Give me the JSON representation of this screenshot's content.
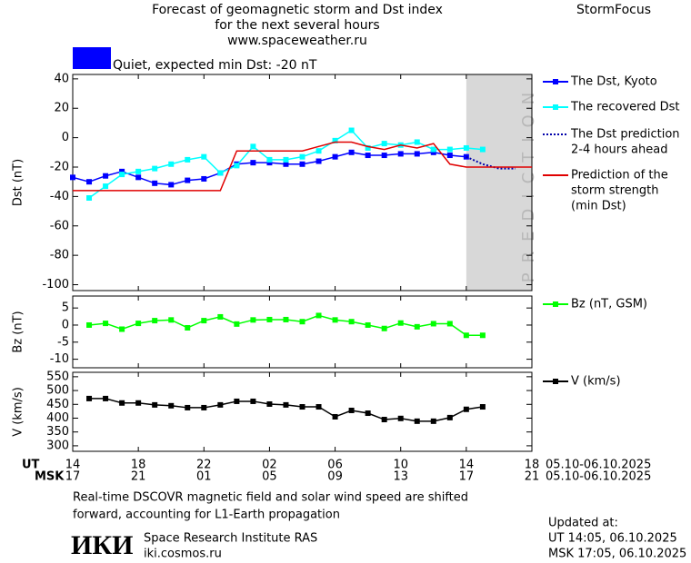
{
  "page": {
    "title": [
      "Forecast of geomagnetic storm and Dst index",
      "for the next several hours",
      "www.spaceweather.ru"
    ],
    "brand": "StormFocus",
    "quiet": {
      "label": "Quiet, expected min Dst: -20 nT",
      "color": "#0000ff"
    },
    "ut_label": "UT",
    "msk_label": "MSK",
    "date_range_ut": "05.10-06.10.2025",
    "date_range_msk": "05.10-06.10.2025",
    "note": [
      "Real-time DSCOVR magnetic field and solar wind speed are shifted",
      "forward, accounting for L1-Earth propagation"
    ],
    "logo": "ИКИ",
    "institute": "Space Research Institute RAS",
    "site": "iki.cosmos.ru",
    "updated": [
      "Updated at:",
      "UT   14:05, 06.10.2025",
      "MSK 17:05, 06.10.2025"
    ]
  },
  "chart_data": [
    {
      "type": "line",
      "ylabel": "Dst (nT)",
      "xlim": [
        0,
        28
      ],
      "ylim": [
        -104,
        43
      ],
      "yticks": [
        40,
        20,
        0,
        -20,
        -40,
        -60,
        -80,
        -100
      ],
      "prediction": {
        "label": "PREDICTION",
        "xlim": [
          24,
          28
        ],
        "color": "#d8d8d8"
      },
      "series": [
        {
          "name": [
            "The Dst, Kyoto"
          ],
          "color": "#0000ff",
          "marker": true,
          "style": "solid",
          "x": [
            0,
            1,
            2,
            3,
            4,
            5,
            6,
            7,
            8,
            9,
            10,
            11,
            12,
            13,
            14,
            15,
            16,
            17,
            18,
            19,
            20,
            21,
            22,
            23,
            24
          ],
          "values": [
            -27,
            -30,
            -26,
            -23,
            -27,
            -31,
            -32,
            -29,
            -28,
            -24,
            -18,
            -17,
            -17,
            -18,
            -18,
            -16,
            -13,
            -10,
            -12,
            -12,
            -11,
            -11,
            -10,
            -12,
            -13
          ]
        },
        {
          "name": [
            "The recovered Dst"
          ],
          "color": "#00ffff",
          "marker": true,
          "style": "solid",
          "x": [
            1,
            2,
            3,
            4,
            5,
            6,
            7,
            8,
            9,
            10,
            11,
            12,
            13,
            14,
            15,
            16,
            17,
            18,
            19,
            20,
            21,
            22,
            23,
            24,
            25
          ],
          "values": [
            -41,
            -33,
            -25,
            -23,
            -21,
            -18,
            -15,
            -13,
            -24,
            -19,
            -6,
            -15,
            -15,
            -13,
            -9,
            -2,
            5,
            -7,
            -4,
            -5,
            -3,
            -8,
            -8,
            -7,
            -8
          ]
        },
        {
          "name": [
            "The Dst prediction",
            "2-4 hours ahead"
          ],
          "color": "#0000aa",
          "marker": false,
          "style": "dotted",
          "x": [
            24,
            25,
            26,
            27
          ],
          "values": [
            -13,
            -18,
            -21,
            -21
          ]
        },
        {
          "name": [
            "Prediction of the",
            "storm strength",
            "(min Dst)"
          ],
          "color": "#e00000",
          "marker": false,
          "style": "solid",
          "x": [
            0,
            9,
            10,
            14,
            15,
            16,
            17,
            18,
            19,
            20,
            21,
            22,
            23,
            24,
            28
          ],
          "values": [
            -36,
            -36,
            -9,
            -9,
            -6,
            -3,
            -3,
            -6,
            -8,
            -5,
            -7,
            -4,
            -18,
            -20,
            -20
          ]
        }
      ]
    },
    {
      "type": "line",
      "ylabel": "Bz (nT)",
      "xlim": [
        0,
        28
      ],
      "ylim": [
        -12.5,
        8.5
      ],
      "yticks": [
        5,
        0,
        -5,
        -10
      ],
      "series": [
        {
          "name": [
            "Bz (nT, GSM)"
          ],
          "color": "#00ff00",
          "marker": true,
          "style": "solid",
          "x": [
            1,
            2,
            3,
            4,
            5,
            6,
            7,
            8,
            9,
            10,
            11,
            12,
            13,
            14,
            15,
            16,
            17,
            18,
            19,
            20,
            21,
            22,
            23,
            24,
            25
          ],
          "values": [
            0,
            0.5,
            -1.2,
            0.5,
            1.3,
            1.5,
            -0.8,
            1.3,
            2.4,
            0.3,
            1.5,
            1.6,
            1.6,
            1.0,
            2.8,
            1.5,
            1.0,
            0,
            -1.0,
            0.6,
            -0.5,
            0.4,
            0.4,
            -3.0,
            -3.0
          ]
        }
      ]
    },
    {
      "type": "line",
      "ylabel": "V (km/s)",
      "xlim": [
        0,
        28
      ],
      "ylim": [
        280,
        566
      ],
      "yticks": [
        550,
        500,
        450,
        400,
        350,
        300
      ],
      "xticks": [
        {
          "value": 0,
          "label": "14"
        },
        {
          "value": 4,
          "label": "18"
        },
        {
          "value": 8,
          "label": "22"
        },
        {
          "value": 12,
          "label": "02"
        },
        {
          "value": 16,
          "label": "06"
        },
        {
          "value": 20,
          "label": "10"
        },
        {
          "value": 24,
          "label": "14"
        },
        {
          "value": 28,
          "label": "18"
        }
      ],
      "xticks_msk": [
        {
          "value": 0,
          "label": "17"
        },
        {
          "value": 4,
          "label": "21"
        },
        {
          "value": 8,
          "label": "01"
        },
        {
          "value": 12,
          "label": "05"
        },
        {
          "value": 16,
          "label": "09"
        },
        {
          "value": 20,
          "label": "13"
        },
        {
          "value": 24,
          "label": "17"
        },
        {
          "value": 28,
          "label": "21"
        }
      ],
      "series": [
        {
          "name": [
            "V (km/s)"
          ],
          "color": "#000000",
          "marker": true,
          "style": "solid",
          "x": [
            1,
            2,
            3,
            4,
            5,
            6,
            7,
            8,
            9,
            10,
            11,
            12,
            13,
            14,
            15,
            16,
            17,
            18,
            19,
            20,
            21,
            22,
            23,
            24,
            25
          ],
          "values": [
            471,
            471,
            455,
            455,
            448,
            445,
            438,
            438,
            448,
            461,
            461,
            451,
            448,
            441,
            441,
            405,
            428,
            418,
            395,
            399,
            389,
            389,
            402,
            432,
            441
          ]
        }
      ]
    }
  ]
}
